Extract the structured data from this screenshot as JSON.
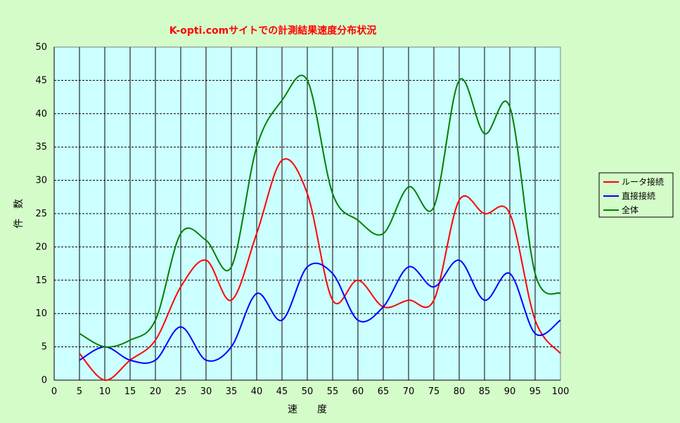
{
  "chart_data": {
    "type": "line",
    "title": "K-opti.comサイトでの計測結果速度分布状況",
    "xlabel": "速　　度",
    "ylabel": "件　数",
    "xlim": [
      0,
      100
    ],
    "ylim": [
      0,
      50
    ],
    "xticks": [
      0,
      5,
      10,
      15,
      20,
      25,
      30,
      35,
      40,
      45,
      50,
      55,
      60,
      65,
      70,
      75,
      80,
      85,
      90,
      95,
      100
    ],
    "yticks": [
      0,
      5,
      10,
      15,
      20,
      25,
      30,
      35,
      40,
      45,
      50
    ],
    "grid": "horizontal dashed, vertical solid",
    "legend_position": "right",
    "x": [
      5,
      10,
      15,
      20,
      25,
      30,
      35,
      40,
      45,
      50,
      55,
      60,
      65,
      70,
      75,
      80,
      85,
      90,
      95,
      100
    ],
    "series": [
      {
        "name": "ルータ接続",
        "color": "#ff0000",
        "values": [
          4,
          0,
          3,
          6,
          14,
          18,
          12,
          22,
          33,
          28,
          12,
          15,
          11,
          12,
          12,
          27,
          25,
          25,
          9,
          4
        ]
      },
      {
        "name": "直接接続",
        "color": "#0000ff",
        "values": [
          3,
          5,
          3,
          3,
          8,
          3,
          5,
          13,
          9,
          17,
          16,
          9,
          11,
          17,
          14,
          18,
          12,
          16,
          7,
          9
        ]
      },
      {
        "name": "全体",
        "color": "#008000",
        "values": [
          7,
          5,
          6,
          9,
          22,
          21,
          17,
          35,
          42,
          45,
          28,
          24,
          22,
          29,
          26,
          45,
          37,
          41,
          16,
          13
        ]
      }
    ]
  },
  "colors": {
    "page_background": "#d4fcc8",
    "plot_background": "#ccffff",
    "title": "#ff0000"
  }
}
